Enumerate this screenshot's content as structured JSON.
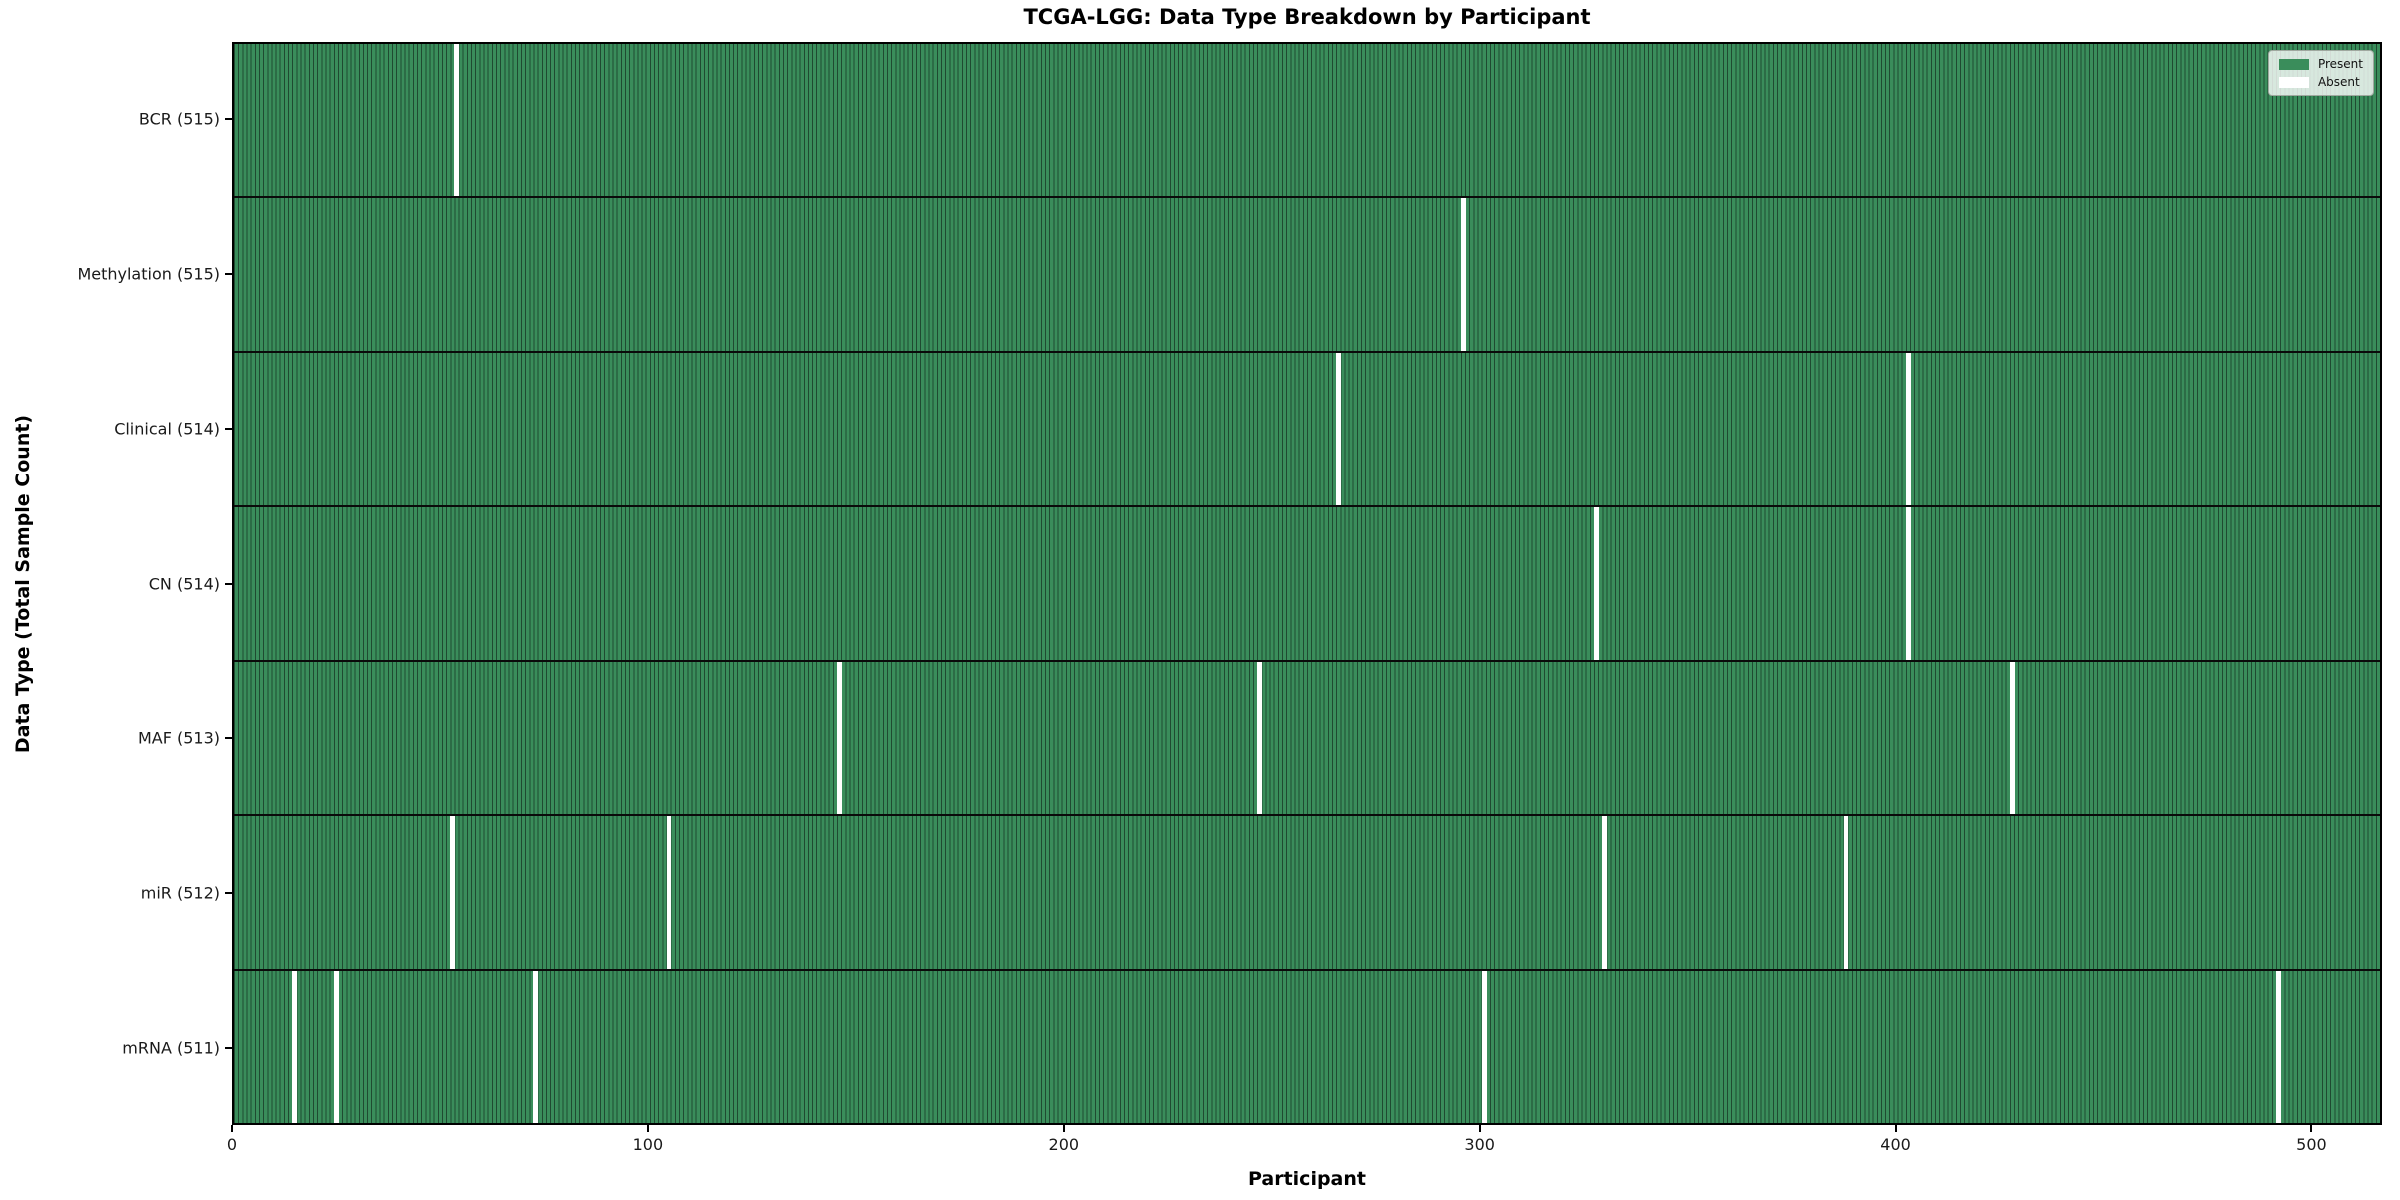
{
  "chart_data": {
    "type": "heatmap",
    "title": "TCGA-LGG: Data Type Breakdown by Participant",
    "xlabel": "Participant",
    "ylabel": "Data Type (Total Sample Count)",
    "x_ticks": [
      0,
      100,
      200,
      300,
      400,
      500
    ],
    "xlim": [
      0,
      516
    ],
    "n_participants": 516,
    "grid": false,
    "legend_position": "upper right",
    "legend": [
      {
        "label": "Present",
        "color": "#3a8d5b"
      },
      {
        "label": "Absent",
        "color": "#ffffff"
      }
    ],
    "rows": [
      {
        "label": "BCR (515)",
        "data_type": "BCR",
        "present_count": 515,
        "absent_participants": [
          53
        ]
      },
      {
        "label": "Methylation (515)",
        "data_type": "Methylation",
        "present_count": 515,
        "absent_participants": [
          295
        ]
      },
      {
        "label": "Clinical (514)",
        "data_type": "Clinical",
        "present_count": 514,
        "absent_participants": [
          265,
          402
        ]
      },
      {
        "label": "CN (514)",
        "data_type": "CN",
        "present_count": 514,
        "absent_participants": [
          327,
          402
        ]
      },
      {
        "label": "MAF (513)",
        "data_type": "MAF",
        "present_count": 513,
        "absent_participants": [
          145,
          246,
          427
        ]
      },
      {
        "label": "miR (512)",
        "data_type": "miR",
        "present_count": 512,
        "absent_participants": [
          52,
          104,
          329,
          387
        ]
      },
      {
        "label": "mRNA (511)",
        "data_type": "mRNA",
        "present_count": 511,
        "absent_participants": [
          14,
          24,
          72,
          300,
          491
        ]
      }
    ],
    "colors": {
      "present": "#3a8d5b",
      "absent": "#ffffff",
      "cell_edge": "#1f4a31",
      "row_separator": "#0a0a0a",
      "spine": "#000000"
    }
  }
}
